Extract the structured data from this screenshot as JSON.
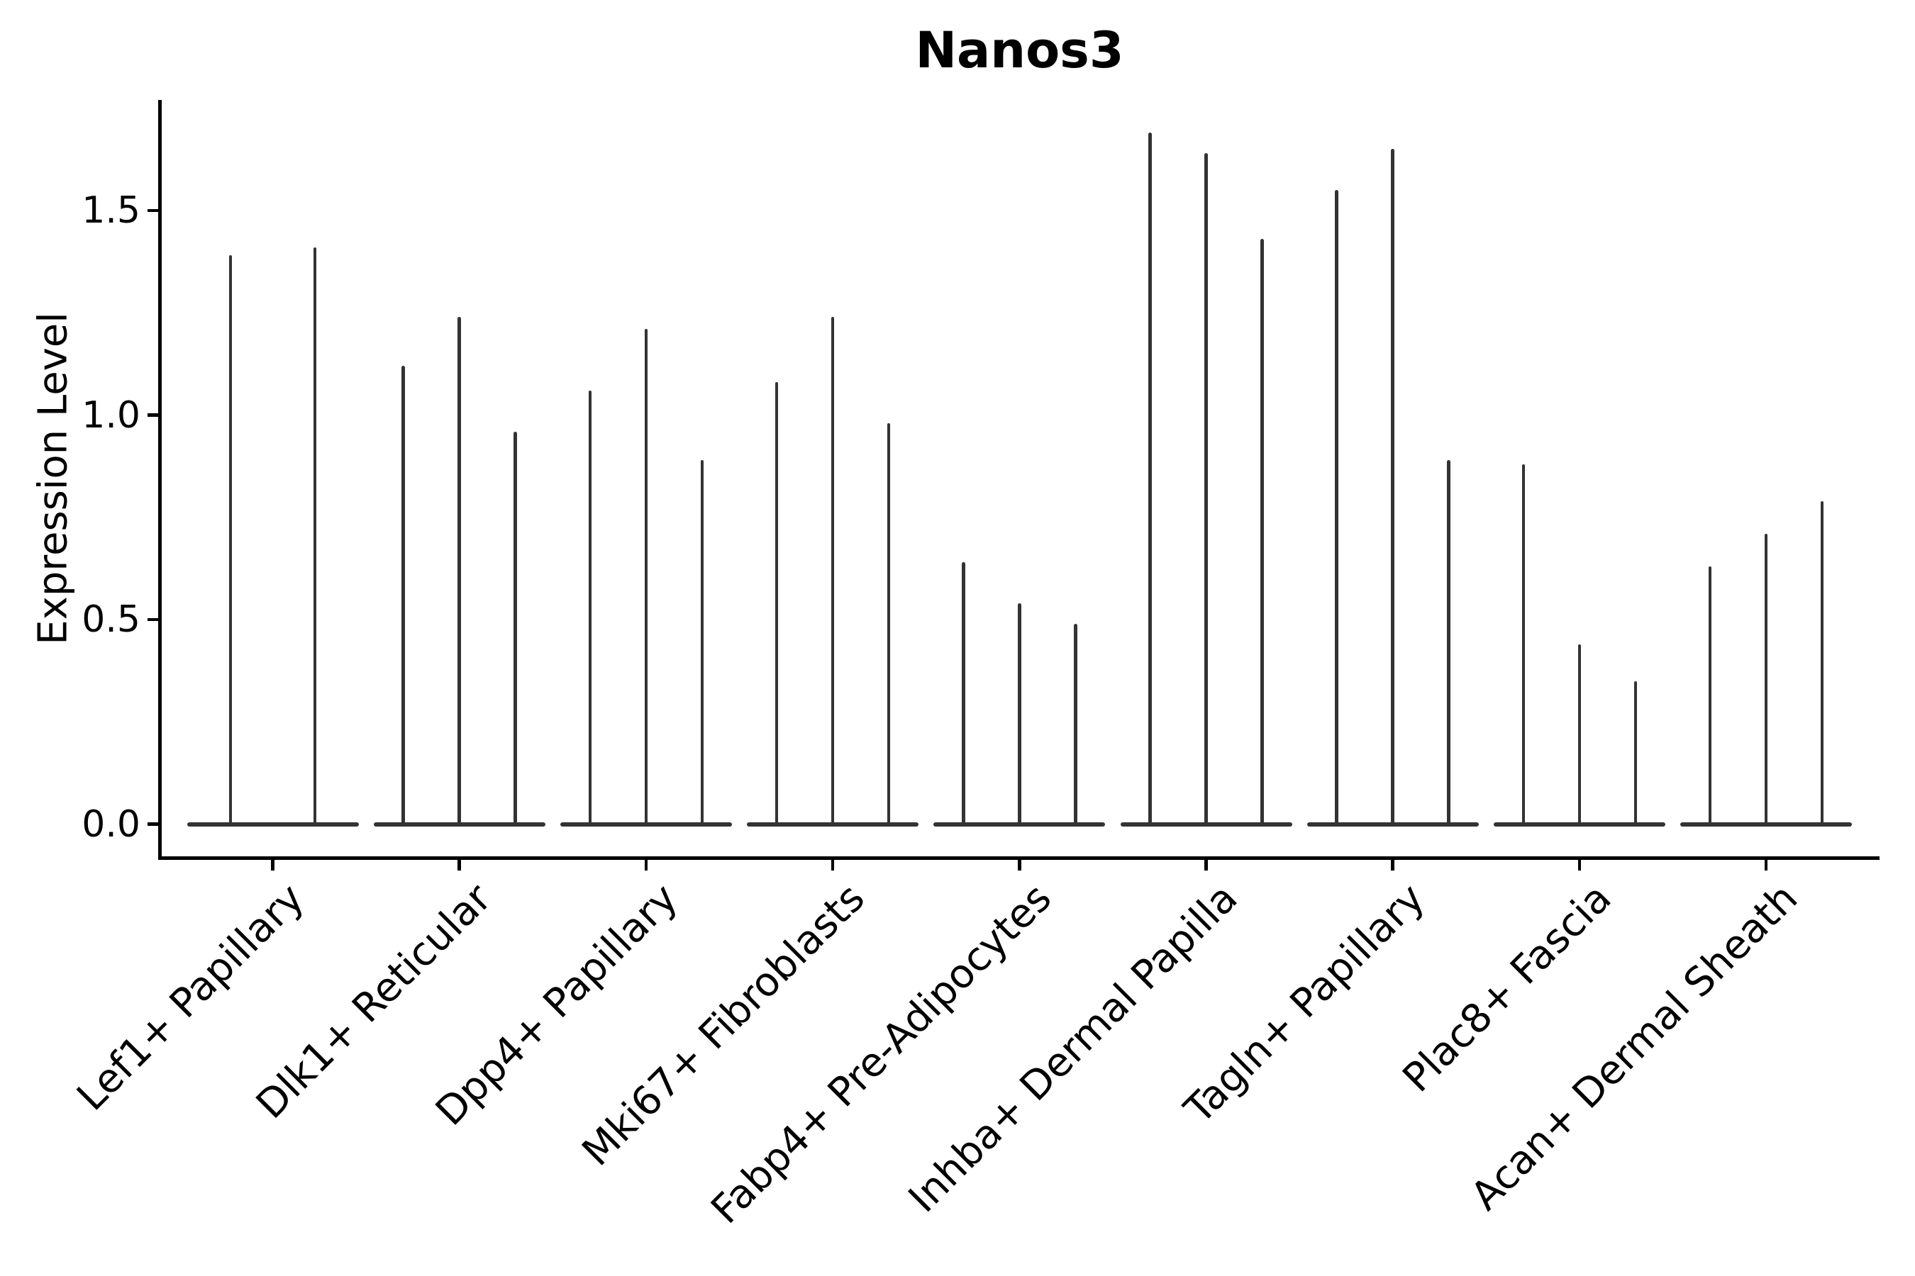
{
  "figure": {
    "title": "Nanos3",
    "ylabel": "Expression Level",
    "background_color": "#ffffff",
    "axis_color": "#000000",
    "violin_color": "#333333"
  },
  "chart_data": {
    "type": "violin",
    "title": "Nanos3",
    "xlabel": "",
    "ylabel": "Expression Level",
    "ylim": [
      -0.08,
      1.77
    ],
    "ytick_values": [
      0.0,
      0.5,
      1.0,
      1.5
    ],
    "ytick_labels": [
      "0.0",
      "0.5",
      "1.0",
      "1.5"
    ],
    "grid": false,
    "legend": "none",
    "xtick_rotation_deg": 45,
    "categories": [
      "Lef1+ Papillary",
      "Dlk1+ Reticular",
      "Dpp4+ Papillary",
      "Mki67+ Fibroblasts",
      "Fabp4+ Pre-Adipocytes",
      "Inhba+ Dermal Papilla",
      "Tagln+ Papillary",
      "Plac8+ Fascia",
      "Acan+ Dermal Sheath"
    ],
    "groups": [
      {
        "category": "Lef1+ Papillary",
        "spike_heights": [
          1.39,
          1.41
        ]
      },
      {
        "category": "Dlk1+ Reticular",
        "spike_heights": [
          1.12,
          1.24,
          0.96
        ]
      },
      {
        "category": "Dpp4+ Papillary",
        "spike_heights": [
          1.06,
          1.21,
          0.89
        ]
      },
      {
        "category": "Mki67+ Fibroblasts",
        "spike_heights": [
          1.08,
          1.24,
          0.98
        ]
      },
      {
        "category": "Fabp4+ Pre-Adipocytes",
        "spike_heights": [
          0.64,
          0.54,
          0.49
        ]
      },
      {
        "category": "Inhba+ Dermal Papilla",
        "spike_heights": [
          1.69,
          1.64,
          1.43
        ]
      },
      {
        "category": "Tagln+ Papillary",
        "spike_heights": [
          1.55,
          1.65,
          0.89
        ]
      },
      {
        "category": "Plac8+ Fascia",
        "spike_heights": [
          0.88,
          0.44,
          0.35
        ]
      },
      {
        "category": "Acan+ Dermal Sheath",
        "spike_heights": [
          0.63,
          0.71,
          0.79
        ]
      }
    ],
    "note": "Needle-thin violins: almost all density flattened at expression 0 (wide flat base), with a hair-thin spike rising to each violin's max expression value."
  }
}
